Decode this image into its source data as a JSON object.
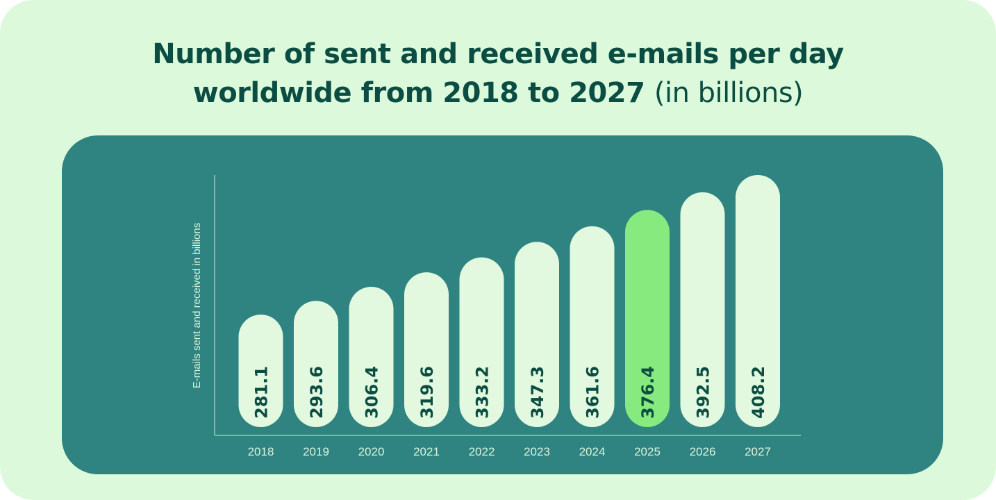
{
  "chart_data": {
    "type": "bar",
    "title": "Number of sent and received e-mails per day worldwide from 2018 to 2027",
    "title_line1": "Number of sent and received e-mails per day",
    "title_line2": "worldwide from 2018 to 2027",
    "title_unit": "(in billions)",
    "ylabel": "E-mails sent and received in billions",
    "xlabel": "",
    "categories": [
      "2018",
      "2019",
      "2020",
      "2021",
      "2022",
      "2023",
      "2024",
      "2025",
      "2026",
      "2027"
    ],
    "values": [
      281.1,
      293.6,
      306.4,
      319.6,
      333.2,
      347.3,
      361.6,
      376.4,
      392.5,
      408.2
    ],
    "value_labels": [
      "281.1",
      "293.6",
      "306.4",
      "319.6",
      "333.2",
      "347.3",
      "361.6",
      "376.4",
      "392.5",
      "408.2"
    ],
    "highlight_category": "2025",
    "colors": {
      "bar": "#e2f9df",
      "highlight": "#87ea7f",
      "label": "#0b4d43",
      "panel": "#2f8381",
      "background": "#dcfadb",
      "axis": "#7fb8ad"
    }
  }
}
